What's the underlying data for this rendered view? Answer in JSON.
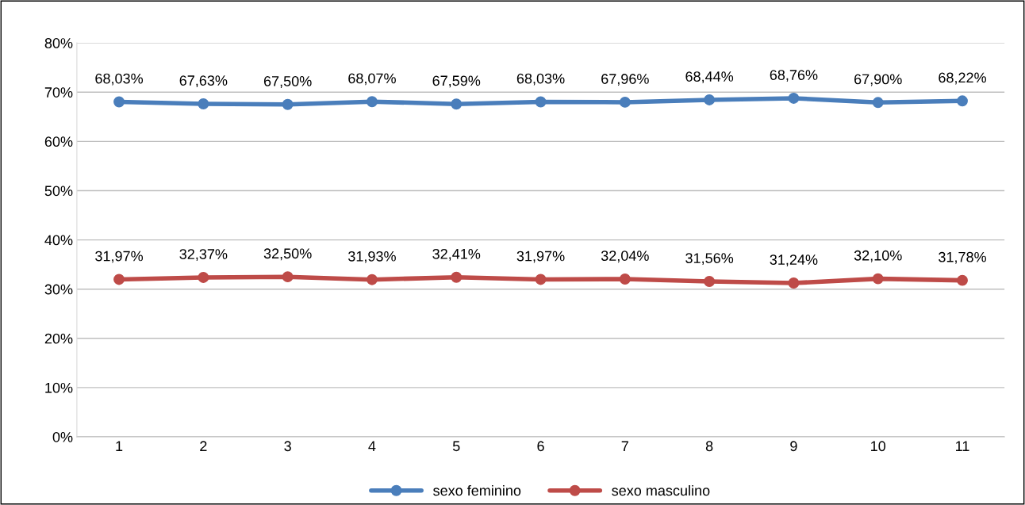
{
  "chart_data": {
    "type": "line",
    "categories": [
      "1",
      "2",
      "3",
      "4",
      "5",
      "6",
      "7",
      "8",
      "9",
      "10",
      "11"
    ],
    "series": [
      {
        "name": "sexo feminino",
        "color": "#4a7ebb",
        "values": [
          68.03,
          67.63,
          67.5,
          68.07,
          67.59,
          68.03,
          67.96,
          68.44,
          68.76,
          67.9,
          68.22
        ],
        "value_labels": [
          "68,03%",
          "67,63%",
          "67,50%",
          "68,07%",
          "67,59%",
          "68,03%",
          "67,96%",
          "68,44%",
          "68,76%",
          "67,90%",
          "68,22%"
        ]
      },
      {
        "name": "sexo masculino",
        "color": "#be4b48",
        "values": [
          31.97,
          32.37,
          32.5,
          31.93,
          32.41,
          31.97,
          32.04,
          31.56,
          31.24,
          32.1,
          31.78
        ],
        "value_labels": [
          "31,97%",
          "32,37%",
          "32,50%",
          "31,93%",
          "32,41%",
          "31,97%",
          "32,04%",
          "31,56%",
          "31,24%",
          "32,10%",
          "31,78%"
        ]
      }
    ],
    "ylim": [
      0,
      80
    ],
    "yticks": [
      {
        "value": 0,
        "label": "0%"
      },
      {
        "value": 10,
        "label": "10%"
      },
      {
        "value": 20,
        "label": "20%"
      },
      {
        "value": 30,
        "label": "30%"
      },
      {
        "value": 40,
        "label": "40%"
      },
      {
        "value": 50,
        "label": "50%"
      },
      {
        "value": 60,
        "label": "60%"
      },
      {
        "value": 70,
        "label": "70%"
      },
      {
        "value": 80,
        "label": "80%"
      }
    ],
    "grid": "y",
    "legend": "bottom",
    "marker": "circle",
    "line_style": "solid"
  }
}
